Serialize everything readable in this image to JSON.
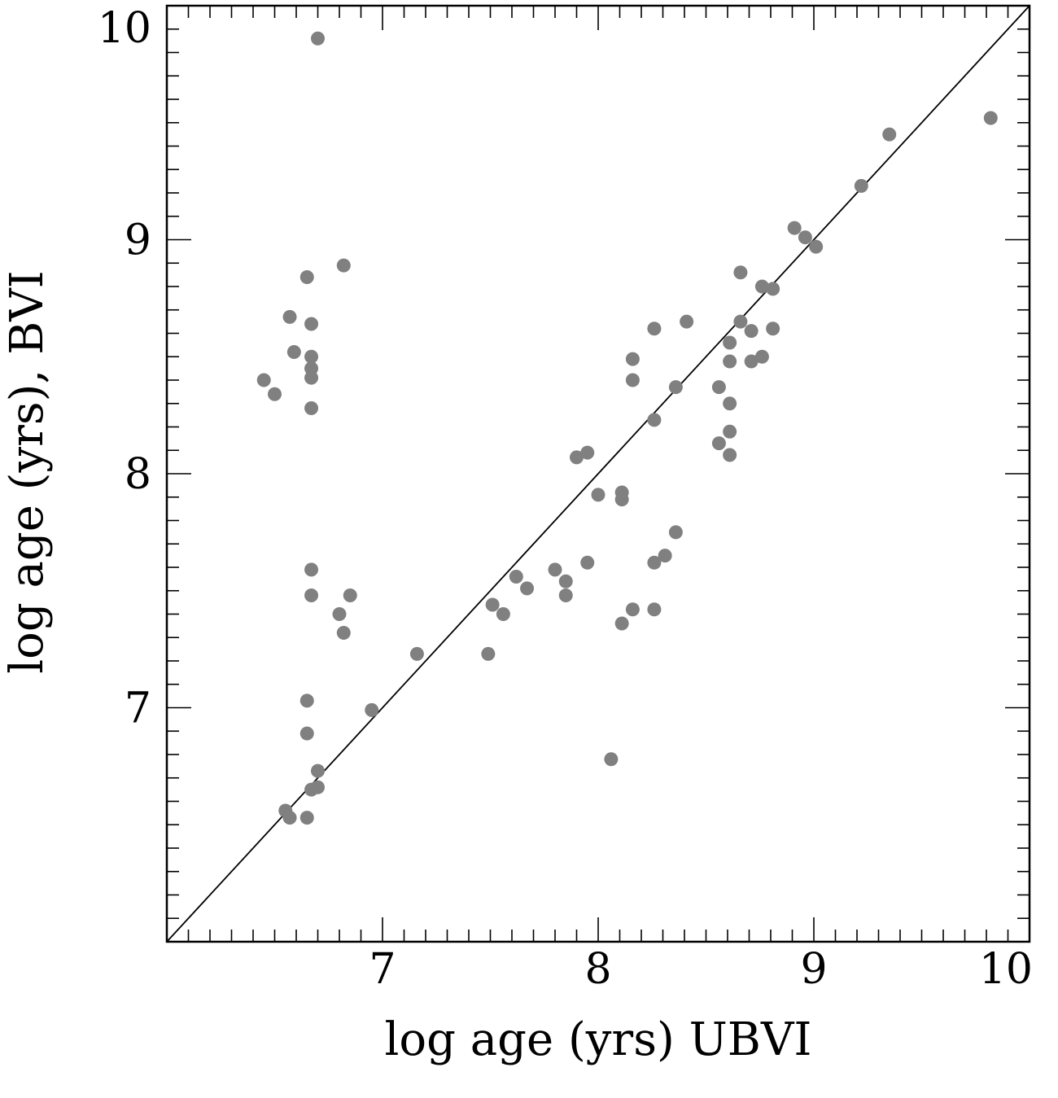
{
  "chart_data": {
    "type": "scatter",
    "title": "",
    "xlabel": "log age (yrs)  UBVI",
    "ylabel": "log age (yrs), BVI",
    "xlim": [
      6.0,
      10.0
    ],
    "ylim": [
      6.0,
      10.0
    ],
    "x_ticks": [
      7,
      8,
      9,
      10
    ],
    "y_ticks": [
      7,
      8,
      9,
      10
    ],
    "grid": false,
    "reference_line": "y = x",
    "marker_color": "#808080",
    "points": [
      {
        "x": 6.7,
        "y": 9.86
      },
      {
        "x": 9.82,
        "y": 9.52
      },
      {
        "x": 9.35,
        "y": 9.45
      },
      {
        "x": 9.22,
        "y": 9.23
      },
      {
        "x": 8.91,
        "y": 9.05
      },
      {
        "x": 8.96,
        "y": 9.01
      },
      {
        "x": 9.01,
        "y": 8.97
      },
      {
        "x": 6.82,
        "y": 8.89
      },
      {
        "x": 6.65,
        "y": 8.84
      },
      {
        "x": 8.66,
        "y": 8.86
      },
      {
        "x": 8.76,
        "y": 8.8
      },
      {
        "x": 8.81,
        "y": 8.79
      },
      {
        "x": 6.57,
        "y": 8.67
      },
      {
        "x": 6.67,
        "y": 8.64
      },
      {
        "x": 8.41,
        "y": 8.65
      },
      {
        "x": 8.66,
        "y": 8.65
      },
      {
        "x": 8.26,
        "y": 8.62
      },
      {
        "x": 8.71,
        "y": 8.61
      },
      {
        "x": 8.81,
        "y": 8.62
      },
      {
        "x": 8.61,
        "y": 8.56
      },
      {
        "x": 6.59,
        "y": 8.52
      },
      {
        "x": 6.67,
        "y": 8.5
      },
      {
        "x": 8.16,
        "y": 8.49
      },
      {
        "x": 8.71,
        "y": 8.48
      },
      {
        "x": 8.76,
        "y": 8.5
      },
      {
        "x": 8.61,
        "y": 8.48
      },
      {
        "x": 6.67,
        "y": 8.45
      },
      {
        "x": 6.67,
        "y": 8.41
      },
      {
        "x": 6.45,
        "y": 8.4
      },
      {
        "x": 8.16,
        "y": 8.4
      },
      {
        "x": 6.5,
        "y": 8.34
      },
      {
        "x": 8.36,
        "y": 8.37
      },
      {
        "x": 8.56,
        "y": 8.37
      },
      {
        "x": 8.61,
        "y": 8.3
      },
      {
        "x": 6.67,
        "y": 8.28
      },
      {
        "x": 8.26,
        "y": 8.23
      },
      {
        "x": 8.61,
        "y": 8.18
      },
      {
        "x": 8.56,
        "y": 8.13
      },
      {
        "x": 8.61,
        "y": 8.08
      },
      {
        "x": 7.95,
        "y": 8.09
      },
      {
        "x": 7.9,
        "y": 8.07
      },
      {
        "x": 8.0,
        "y": 7.91
      },
      {
        "x": 8.11,
        "y": 7.92
      },
      {
        "x": 8.11,
        "y": 7.89
      },
      {
        "x": 8.36,
        "y": 7.75
      },
      {
        "x": 8.31,
        "y": 7.65
      },
      {
        "x": 8.26,
        "y": 7.62
      },
      {
        "x": 7.95,
        "y": 7.62
      },
      {
        "x": 6.67,
        "y": 7.59
      },
      {
        "x": 7.8,
        "y": 7.59
      },
      {
        "x": 7.62,
        "y": 7.56
      },
      {
        "x": 7.85,
        "y": 7.54
      },
      {
        "x": 7.67,
        "y": 7.51
      },
      {
        "x": 6.67,
        "y": 7.48
      },
      {
        "x": 6.85,
        "y": 7.48
      },
      {
        "x": 7.85,
        "y": 7.48
      },
      {
        "x": 7.51,
        "y": 7.44
      },
      {
        "x": 8.16,
        "y": 7.42
      },
      {
        "x": 8.26,
        "y": 7.42
      },
      {
        "x": 7.56,
        "y": 7.4
      },
      {
        "x": 6.8,
        "y": 7.4
      },
      {
        "x": 8.11,
        "y": 7.36
      },
      {
        "x": 6.82,
        "y": 7.32
      },
      {
        "x": 7.16,
        "y": 7.23
      },
      {
        "x": 7.49,
        "y": 7.23
      },
      {
        "x": 6.65,
        "y": 7.03
      },
      {
        "x": 6.95,
        "y": 6.99
      },
      {
        "x": 6.65,
        "y": 6.89
      },
      {
        "x": 8.06,
        "y": 6.78
      },
      {
        "x": 6.7,
        "y": 6.73
      },
      {
        "x": 6.7,
        "y": 6.66
      },
      {
        "x": 6.67,
        "y": 6.65
      },
      {
        "x": 6.55,
        "y": 6.56
      },
      {
        "x": 6.57,
        "y": 6.53
      },
      {
        "x": 6.65,
        "y": 6.53
      }
    ]
  }
}
